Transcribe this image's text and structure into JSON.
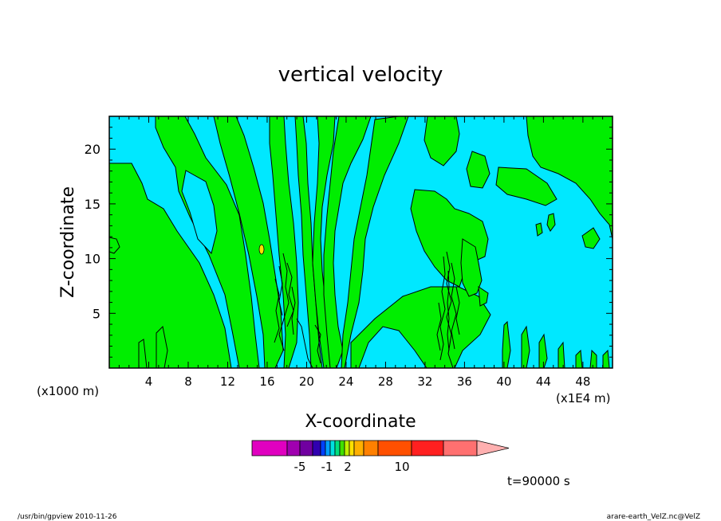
{
  "chart_data": {
    "type": "heatmap",
    "title": "vertical velocity",
    "xlabel": "X-coordinate",
    "ylabel": "Z-coordinate",
    "x_unit_left": "(x1000 m)",
    "x_unit_right": "(x1E4 m)",
    "xlim": [
      0,
      51
    ],
    "ylim": [
      0,
      23
    ],
    "x_ticks": [
      "4",
      "8",
      "12",
      "16",
      "20",
      "24",
      "28",
      "32",
      "36",
      "40",
      "44",
      "48"
    ],
    "x_tick_values": [
      4,
      8,
      12,
      16,
      20,
      24,
      28,
      32,
      36,
      40,
      44,
      48
    ],
    "y_ticks": [
      "5",
      "10",
      "15",
      "20"
    ],
    "y_tick_values": [
      5,
      10,
      15,
      20
    ],
    "colorbar": {
      "labels": [
        "-5",
        "-1",
        "2",
        "10"
      ],
      "colors": [
        "#e000c0",
        "#a000b0",
        "#7000a0",
        "#3000b0",
        "#0040ff",
        "#00a0ff",
        "#00e0e0",
        "#00e080",
        "#40e000",
        "#c0f000",
        "#ffe000",
        "#ffb000",
        "#ff8000",
        "#ff5000",
        "#ff2020",
        "#ff7070",
        "#ffb0b0"
      ],
      "triangle_end": "right"
    },
    "field": {
      "background_color": "#00e8ff",
      "positive_color": "#00ee00",
      "strong_color": "#000000"
    },
    "annotation_time": "t=90000 s"
  },
  "footer": {
    "left": "/usr/bin/gpview  2010-11-26",
    "right": "arare-earth_VelZ.nc@VelZ"
  }
}
